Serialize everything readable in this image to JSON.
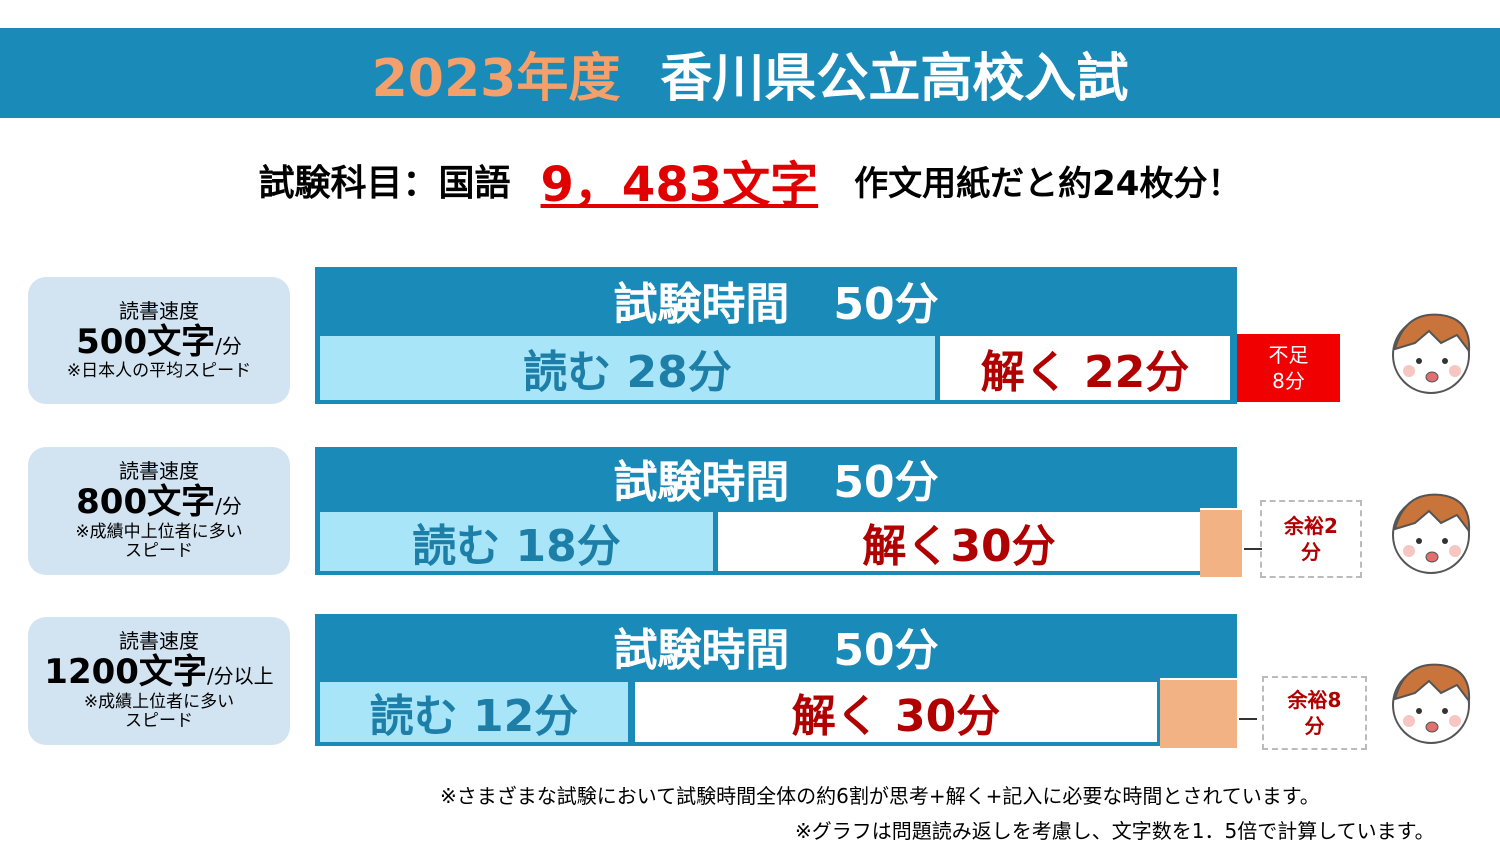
{
  "header": {
    "year": "2023年度",
    "title": "香川県公立高校入試"
  },
  "subtitle": {
    "subject": "試験科目：国語",
    "count": "9，483文字",
    "note": "作文用紙だと約24枚分！"
  },
  "rows": [
    {
      "label": "読書速度",
      "speed": "500文字",
      "unit": "/分",
      "note": "※日本人の平均スピード",
      "time": "試験時間　50分",
      "read": "読む 28分",
      "solve": "解く 22分",
      "extra": "不足\n8分"
    },
    {
      "label": "読書速度",
      "speed": "800文字",
      "unit": "/分",
      "note": "※成績中上位者に多い\nスピード",
      "time": "試験時間　50分",
      "read": "読む 18分",
      "solve": "解く30分",
      "extra": "余裕2\n分"
    },
    {
      "label": "読書速度",
      "speed": "1200文字",
      "unit": "/分以上",
      "note": "※成績上位者に多い\nスピード",
      "time": "試験時間　50分",
      "read": "読む 12分",
      "solve": "解く 30分",
      "extra": "余裕8\n分"
    }
  ],
  "footnotes": [
    "※さまざまな試験において試験時間全体の約6割が思考+解く+記入に必要な時間とされています。",
    "※グラフは問題読み返しを考慮し、文字数を1．5倍で計算しています。"
  ]
}
